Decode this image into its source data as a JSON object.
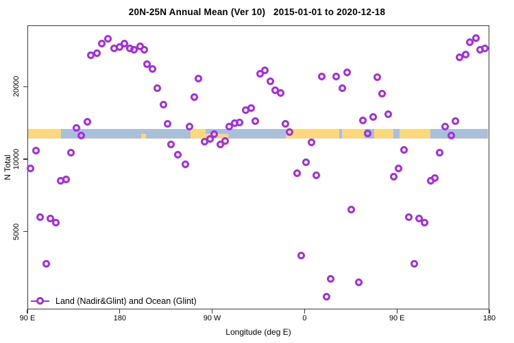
{
  "title": "20N-25N Annual Mean (Ver 10)   2015-01-01 to 2020-12-18",
  "legend": {
    "label": "Land (Nadir&Glint) and Ocean (Glint)"
  },
  "colors": {
    "point": "#a829e8",
    "ocean": "#aabfda",
    "land": "#fbd77d",
    "axis": "#3a3a3a",
    "text": "#000000"
  },
  "axes": {
    "x": {
      "label": "Longitude (deg E)",
      "range_deg_east_continuous": [
        90,
        540
      ],
      "ticks": [
        {
          "lon": 90,
          "label": "90 E"
        },
        {
          "lon": 180,
          "label": "180"
        },
        {
          "lon": 270,
          "label": "90 W"
        },
        {
          "lon": 360,
          "label": "0"
        },
        {
          "lon": 450,
          "label": "90 E"
        },
        {
          "lon": 540,
          "label": "180"
        }
      ]
    },
    "y": {
      "label": "N Total",
      "scale": "log",
      "ticks": [
        {
          "value": 5000,
          "label": "5000"
        },
        {
          "value": 10000,
          "label": "10000"
        },
        {
          "value": 20000,
          "label": "20000"
        }
      ]
    }
  },
  "map_strip": {
    "description": "world land/ocean strip for 20N-25N drawn across plot near N=13000",
    "value_center": 13000,
    "patches_lon": [
      {
        "from": 90,
        "to": 122,
        "part": "full"
      },
      {
        "from": 200,
        "to": 205,
        "part": "bottom"
      },
      {
        "from": 248,
        "to": 263,
        "part": "full"
      },
      {
        "from": 263,
        "to": 285,
        "part": "bottom"
      },
      {
        "from": 341,
        "to": 393,
        "part": "full"
      },
      {
        "from": 396,
        "to": 418,
        "part": "full"
      },
      {
        "from": 427,
        "to": 446,
        "part": "full"
      },
      {
        "from": 452,
        "to": 482,
        "part": "full"
      }
    ]
  },
  "chart_data": {
    "type": "scatter",
    "title": "20N-25N Annual Mean (Ver 10)   2015-01-01 to 2020-12-18",
    "xlabel": "Longitude (deg E)",
    "ylabel": "N Total",
    "xlim": [
      90,
      540
    ],
    "ylog": true,
    "ylim_approx": [
      2400,
      36000
    ],
    "legend_position": "bottom-left",
    "grid": false,
    "point_format": "[longitude_degE_continuous, N_total]",
    "series": [
      {
        "name": "Land (Nadir&Glint) and Ocean (Glint)",
        "points": [
          [
            137,
            13600
          ],
          [
            142,
            12600
          ],
          [
            148,
            14400
          ],
          [
            151,
            27100
          ],
          [
            157,
            27800
          ],
          [
            162,
            30300
          ],
          [
            168,
            31900
          ],
          [
            174,
            29100
          ],
          [
            179,
            29500
          ],
          [
            184,
            30300
          ],
          [
            189,
            29100
          ],
          [
            193,
            28700
          ],
          [
            199,
            29700
          ],
          [
            203,
            28700
          ],
          [
            206,
            25000
          ],
          [
            211,
            23900
          ],
          [
            216,
            19900
          ],
          [
            222,
            17000
          ],
          [
            226,
            14100
          ],
          [
            229,
            11600
          ],
          [
            236,
            10500
          ],
          [
            243,
            9600
          ],
          [
            98,
            10900
          ],
          [
            132,
            10700
          ],
          [
            92,
            9200
          ],
          [
            122,
            8200
          ],
          [
            127,
            8300
          ],
          [
            102,
            5800
          ],
          [
            112,
            5700
          ],
          [
            117,
            5500
          ],
          [
            108,
            3700
          ],
          [
            256,
            21800
          ],
          [
            252,
            18200
          ],
          [
            247,
            13700
          ],
          [
            262,
            11900
          ],
          [
            267,
            12200
          ],
          [
            271,
            12800
          ],
          [
            277,
            11600
          ],
          [
            282,
            12000
          ],
          [
            286,
            13700
          ],
          [
            291,
            14200
          ],
          [
            296,
            14300
          ],
          [
            302,
            16100
          ],
          [
            307,
            16400
          ],
          [
            311,
            14500
          ],
          [
            316,
            22700
          ],
          [
            321,
            23600
          ],
          [
            326,
            21200
          ],
          [
            331,
            19400
          ],
          [
            336,
            18900
          ],
          [
            341,
            14100
          ],
          [
            345,
            13000
          ],
          [
            356,
            4000
          ],
          [
            361,
            9800
          ],
          [
            366,
            11800
          ],
          [
            352,
            8800
          ],
          [
            371,
            8600
          ],
          [
            376,
            22200
          ],
          [
            381,
            2700
          ],
          [
            385,
            3200
          ],
          [
            390,
            22200
          ],
          [
            401,
            23000
          ],
          [
            396,
            19800
          ],
          [
            405,
            6200
          ],
          [
            412,
            3100
          ],
          [
            416,
            14600
          ],
          [
            421,
            12900
          ],
          [
            426,
            15100
          ],
          [
            430,
            22100
          ],
          [
            435,
            18800
          ],
          [
            441,
            15500
          ],
          [
            446,
            8500
          ],
          [
            451,
            9200
          ],
          [
            456,
            11000
          ],
          [
            461,
            5800
          ],
          [
            471,
            5700
          ],
          [
            476,
            5500
          ],
          [
            466,
            3700
          ],
          [
            482,
            8200
          ],
          [
            486,
            8400
          ],
          [
            491,
            10700
          ],
          [
            496,
            13700
          ],
          [
            502,
            12600
          ],
          [
            506,
            14500
          ],
          [
            510,
            26600
          ],
          [
            516,
            27400
          ],
          [
            520,
            30700
          ],
          [
            526,
            32100
          ],
          [
            530,
            28700
          ],
          [
            535,
            29100
          ]
        ]
      }
    ]
  }
}
